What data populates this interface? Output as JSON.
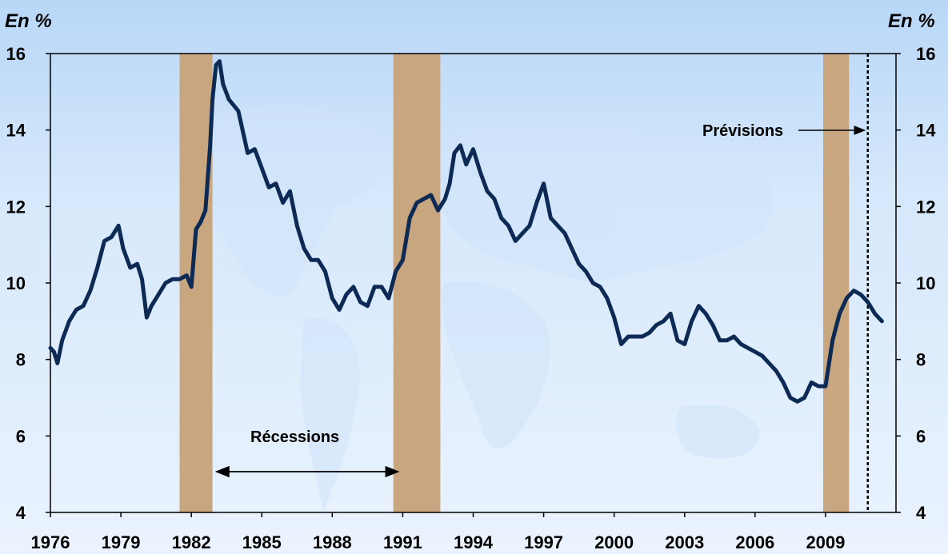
{
  "chart_data": {
    "type": "line",
    "title": "",
    "xlabel": "",
    "ylabel_left": "En %",
    "ylabel_right": "En %",
    "ylim": [
      4,
      16
    ],
    "yticks": [
      4,
      6,
      8,
      10,
      12,
      14,
      16
    ],
    "xlim": [
      1976,
      2012
    ],
    "xticks": [
      "1976",
      "1979",
      "1982",
      "1985",
      "1988",
      "1991",
      "1994",
      "1997",
      "2000",
      "2003",
      "2006",
      "2009"
    ],
    "grid": false,
    "line_color": "#0d2a55",
    "recession_color": "#c8a67f",
    "recessions": [
      [
        1981.5,
        1982.9
      ],
      [
        1990.6,
        1992.6
      ],
      [
        2008.9,
        2010.0
      ]
    ],
    "forecast_start": 2010.8,
    "annotations": {
      "recessions_label": "Récessions",
      "forecast_label": "Prévisions"
    },
    "series": [
      {
        "x": [
          1976.0,
          1976.15,
          1976.3,
          1976.5,
          1976.8,
          1977.1,
          1977.4,
          1977.7,
          1978.0,
          1978.3,
          1978.6,
          1978.9,
          1979.1,
          1979.4,
          1979.7,
          1979.9,
          1980.1,
          1980.3,
          1980.6,
          1980.9,
          1981.2,
          1981.5,
          1981.8,
          1982.0,
          1982.2,
          1982.4,
          1982.6,
          1982.8,
          1982.9,
          1983.05,
          1983.2,
          1983.35,
          1983.6,
          1984.0,
          1984.4,
          1984.7,
          1985.0,
          1985.3,
          1985.6,
          1985.9,
          1986.2,
          1986.5,
          1986.8,
          1987.1,
          1987.4,
          1987.7,
          1988.0,
          1988.3,
          1988.6,
          1988.9,
          1989.2,
          1989.5,
          1989.8,
          1990.1,
          1990.4,
          1990.7,
          1991.0,
          1991.3,
          1991.6,
          1991.9,
          1992.2,
          1992.5,
          1992.8,
          1993.0,
          1993.2,
          1993.45,
          1993.7,
          1994.0,
          1994.3,
          1994.6,
          1994.9,
          1995.2,
          1995.5,
          1995.8,
          1996.1,
          1996.4,
          1996.7,
          1997.0,
          1997.3,
          1997.6,
          1997.9,
          1998.2,
          1998.5,
          1998.8,
          1999.1,
          1999.4,
          1999.7,
          2000.0,
          2000.3,
          2000.6,
          2000.9,
          2001.2,
          2001.5,
          2001.8,
          2002.1,
          2002.4,
          2002.7,
          2003.0,
          2003.3,
          2003.6,
          2003.9,
          2004.2,
          2004.5,
          2004.8,
          2005.1,
          2005.4,
          2005.7,
          2006.0,
          2006.3,
          2006.6,
          2006.9,
          2007.2,
          2007.5,
          2007.8,
          2008.1,
          2008.4,
          2008.7,
          2009.0,
          2009.3,
          2009.6,
          2009.9,
          2010.2,
          2010.5,
          2010.8,
          2011.1,
          2011.4
        ],
        "y": [
          8.3,
          8.2,
          7.9,
          8.5,
          9.0,
          9.3,
          9.4,
          9.8,
          10.4,
          11.1,
          11.2,
          11.5,
          10.9,
          10.4,
          10.5,
          10.1,
          9.1,
          9.4,
          9.7,
          10.0,
          10.1,
          10.1,
          10.2,
          9.9,
          11.4,
          11.6,
          11.9,
          13.6,
          14.8,
          15.7,
          15.8,
          15.2,
          14.8,
          14.5,
          13.4,
          13.5,
          13.0,
          12.5,
          12.6,
          12.1,
          12.4,
          11.5,
          10.9,
          10.6,
          10.6,
          10.3,
          9.6,
          9.3,
          9.7,
          9.9,
          9.5,
          9.4,
          9.9,
          9.9,
          9.6,
          10.3,
          10.6,
          11.7,
          12.1,
          12.2,
          12.3,
          11.9,
          12.2,
          12.6,
          13.4,
          13.6,
          13.1,
          13.5,
          12.9,
          12.4,
          12.2,
          11.7,
          11.5,
          11.1,
          11.3,
          11.5,
          12.1,
          12.6,
          11.7,
          11.5,
          11.3,
          10.9,
          10.5,
          10.3,
          10.0,
          9.9,
          9.6,
          9.1,
          8.4,
          8.6,
          8.6,
          8.6,
          8.7,
          8.9,
          9.0,
          9.2,
          8.5,
          8.4,
          9.0,
          9.4,
          9.2,
          8.9,
          8.5,
          8.5,
          8.6,
          8.4,
          8.3,
          8.2,
          8.1,
          7.9,
          7.7,
          7.4,
          7.0,
          6.9,
          7.0,
          7.4,
          7.3,
          7.3,
          8.5,
          9.2,
          9.6,
          9.8,
          9.7,
          9.5,
          9.2,
          9.0
        ]
      }
    ]
  }
}
